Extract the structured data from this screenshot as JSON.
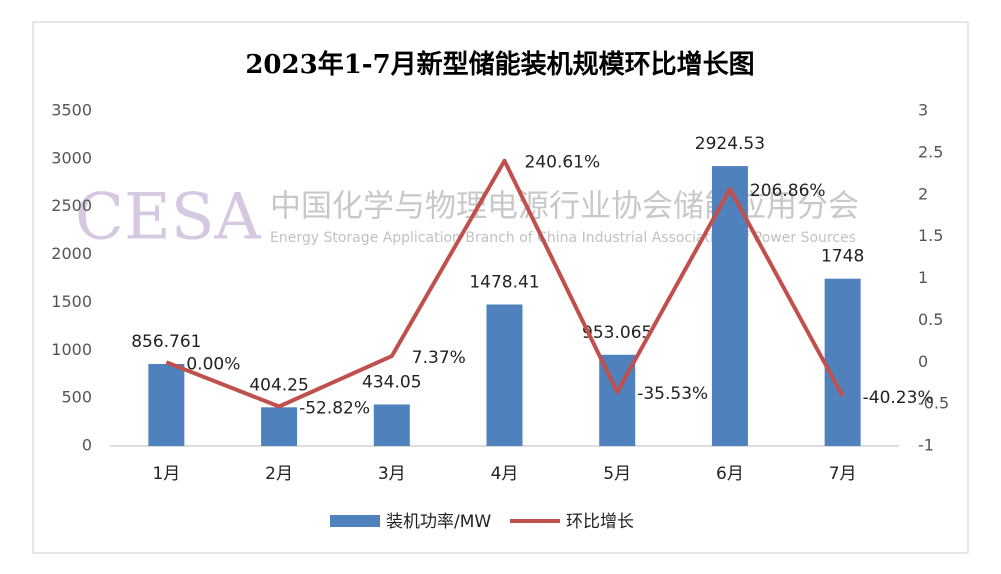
{
  "chart_data": {
    "type": "bar-line",
    "title": "2023年1-7月新型储能装机规模环比增长图",
    "categories": [
      "1月",
      "2月",
      "3月",
      "4月",
      "5月",
      "6月",
      "7月"
    ],
    "series": [
      {
        "name": "装机功率/MW",
        "type": "bar",
        "color": "#4f81bd",
        "values": [
          856.761,
          404.25,
          434.05,
          1478.41,
          953.065,
          2924.53,
          1748
        ]
      },
      {
        "name": "环比增长",
        "type": "line",
        "axis": "y2",
        "color": "#c0504d",
        "values": [
          0,
          -0.5282,
          0.0737,
          2.4061,
          -0.3553,
          2.0686,
          -0.4023
        ],
        "value_labels": [
          "0.00%",
          "-52.82%",
          "7.37%",
          "240.61%",
          "-35.53%",
          "206.86%",
          "-40.23%"
        ]
      }
    ],
    "ylim": [
      0,
      3500
    ],
    "yticks": [
      0,
      500,
      1000,
      1500,
      2000,
      2500,
      3000,
      3500
    ],
    "y2lim": [
      -1,
      3
    ],
    "y2ticks": [
      -1,
      -0.5,
      0,
      0.5,
      1,
      1.5,
      2,
      2.5,
      3
    ],
    "grid": false,
    "legend": "bottom",
    "watermark": {
      "logo": "CESA",
      "name": "中国化学与物理电源行业协会储能应用分会",
      "name_en": "Energy Storage Application Branch of China Industrial Association of Power Sources"
    }
  }
}
